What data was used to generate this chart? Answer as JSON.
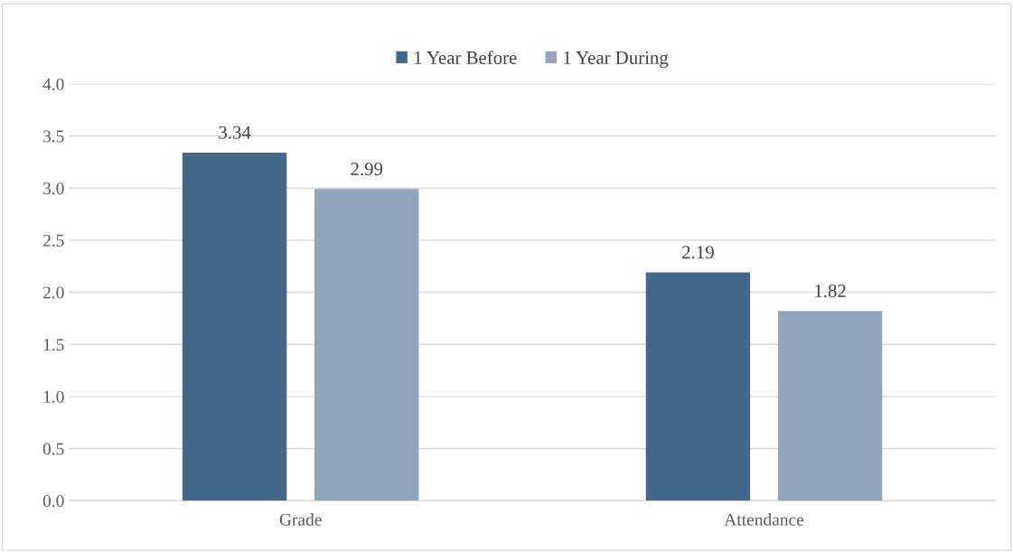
{
  "chart_data": {
    "type": "bar",
    "categories": [
      "Grade",
      "Attendance"
    ],
    "series": [
      {
        "name": "1 Year Before",
        "color": "#41678b",
        "values": [
          3.34,
          2.19
        ]
      },
      {
        "name": "1 Year During",
        "color": "#91a5be",
        "values": [
          2.99,
          1.82
        ]
      }
    ],
    "ylim": [
      0,
      4.0
    ],
    "yticks": [
      {
        "value": 0,
        "label": "0.0"
      },
      {
        "value": 0.5,
        "label": "0.5"
      },
      {
        "value": 1.0,
        "label": "1.0"
      },
      {
        "value": 1.5,
        "label": "1.5"
      },
      {
        "value": 2.0,
        "label": "2.0"
      },
      {
        "value": 2.5,
        "label": "2.5"
      },
      {
        "value": 3.0,
        "label": "3.0"
      },
      {
        "value": 3.5,
        "label": "3.5"
      },
      {
        "value": 4.0,
        "label": "4.0"
      }
    ],
    "grid": "y",
    "legend": "top",
    "data_labels": true
  }
}
